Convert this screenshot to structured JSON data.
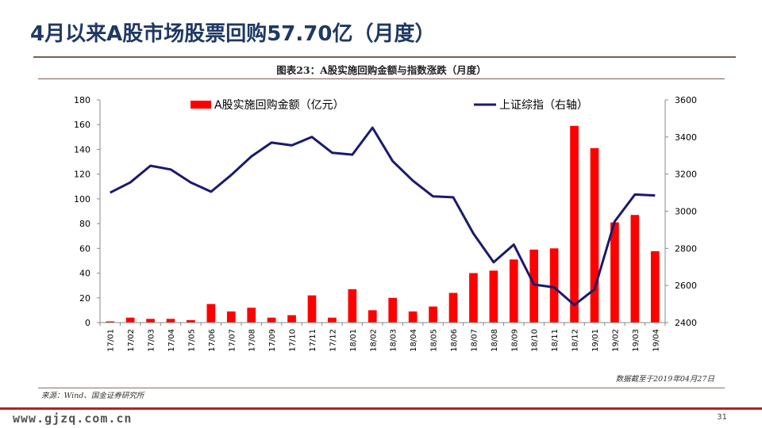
{
  "slide": {
    "title": "4月以来A股市场股票回购57.70亿（月度）",
    "figure_caption": "图表23：A股实施回购金额与指数涨跌（月度）",
    "data_date_note": "数据截至于2019年04月27日",
    "source_note": "来源：Wind、国金证券研究所",
    "watermark": "www.gjzq.com.cn",
    "page_number": "31"
  },
  "colors": {
    "bar": "#ff0000",
    "line": "#1a1a6e",
    "title": "#1f3864",
    "rule": "#7a5e52",
    "bottom_bar": "#b22222"
  },
  "chart_data": {
    "type": "bar",
    "categories": [
      "17/01",
      "17/02",
      "17/03",
      "17/04",
      "17/05",
      "17/06",
      "17/07",
      "17/08",
      "17/09",
      "17/10",
      "17/11",
      "17/12",
      "18/01",
      "18/02",
      "18/03",
      "18/04",
      "18/05",
      "18/06",
      "18/07",
      "18/08",
      "18/09",
      "18/10",
      "18/11",
      "18/12",
      "19/01",
      "19/02",
      "19/03",
      "19/04"
    ],
    "series": [
      {
        "name": "A股实施回购金额（亿元）",
        "type": "bar",
        "axis": "left",
        "values": [
          1,
          4,
          3,
          3,
          2,
          15,
          9,
          12,
          4,
          6,
          22,
          4,
          27,
          10,
          20,
          9,
          13,
          24,
          40,
          42,
          51,
          59,
          60,
          159,
          141,
          81,
          87,
          57.7
        ]
      },
      {
        "name": "上证综指（右轴）",
        "type": "line",
        "axis": "right",
        "values": [
          3100,
          3155,
          3245,
          3225,
          3155,
          3105,
          3195,
          3295,
          3370,
          3355,
          3400,
          3315,
          3305,
          3450,
          3270,
          3165,
          3080,
          3075,
          2880,
          2725,
          2820,
          2605,
          2590,
          2495,
          2580,
          2945,
          3090,
          3085
        ]
      }
    ],
    "y_left": {
      "ylim": [
        0,
        180
      ],
      "ticks": [
        "0",
        "20",
        "40",
        "60",
        "80",
        "100",
        "120",
        "140",
        "160",
        "180"
      ]
    },
    "y_right": {
      "ylim": [
        2400,
        3600
      ],
      "ticks": [
        "2400",
        "2600",
        "2800",
        "3000",
        "3200",
        "3400",
        "3600"
      ]
    },
    "grid": false,
    "legend_position": "top"
  }
}
